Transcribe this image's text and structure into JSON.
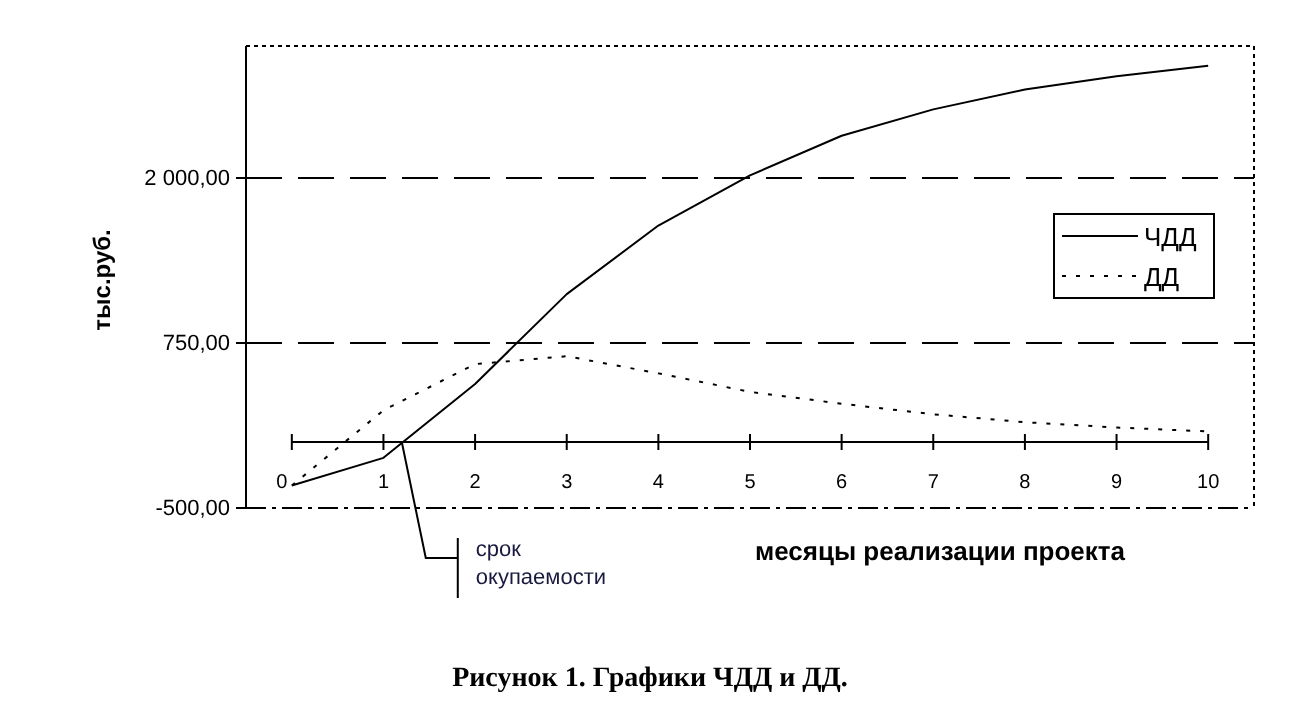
{
  "chart_data": {
    "type": "line",
    "title": "Рисунок 1. Графики ЧДД и ДД.",
    "xlabel": "месяцы реализации проекта",
    "ylabel": "тыс.руб.",
    "x": [
      0,
      1,
      2,
      3,
      4,
      5,
      6,
      7,
      8,
      9,
      10
    ],
    "series": [
      {
        "name": "ЧДД",
        "color": "#000000",
        "line_style": "solid",
        "values": [
          -330,
          -120,
          440,
          1120,
          1640,
          2020,
          2320,
          2520,
          2670,
          2770,
          2850
        ]
      },
      {
        "name": "ДД",
        "color": "#000000",
        "line_style": "dotted",
        "values": [
          -330,
          240,
          590,
          650,
          520,
          380,
          290,
          210,
          150,
          110,
          80
        ]
      }
    ],
    "xlim": [
      -0.5,
      10.5
    ],
    "xticks": [
      0,
      1,
      2,
      3,
      4,
      5,
      6,
      7,
      8,
      9,
      10
    ],
    "ylim": [
      -500,
      3000
    ],
    "yticks": [
      {
        "value": -500,
        "label": "-500,00"
      },
      {
        "value": 750,
        "label": "750,00"
      },
      {
        "value": 2000,
        "label": "2 000,00"
      }
    ],
    "grid": "y",
    "legend": "right",
    "marker": "none",
    "annotations": [
      {
        "text": "срок окупаемости",
        "x": 1.2,
        "y": 0
      }
    ]
  }
}
